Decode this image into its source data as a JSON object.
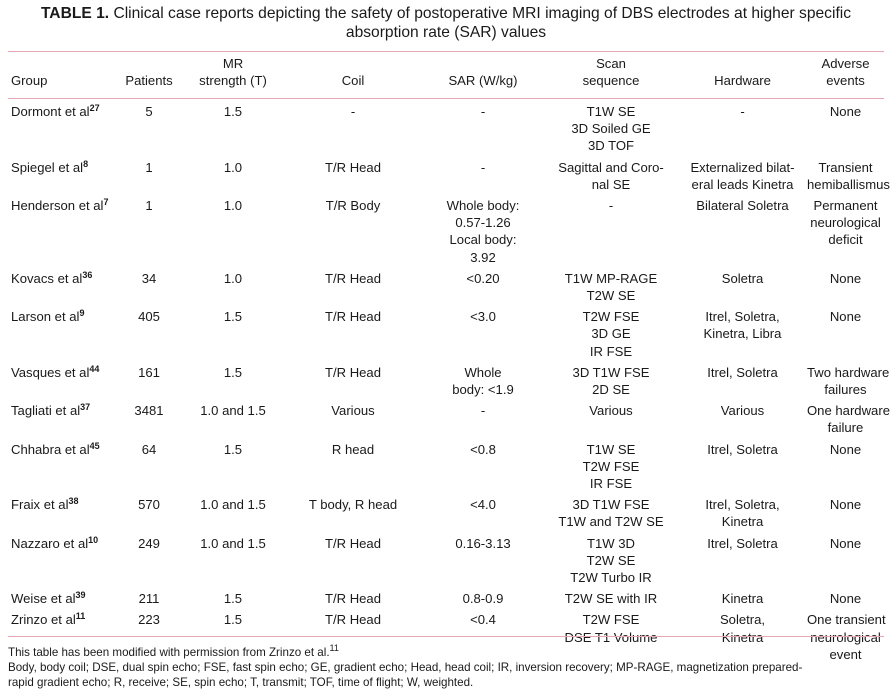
{
  "caption": {
    "label": "TABLE 1.",
    "line1": "Clinical case reports depicting the safety of postoperative MRI imaging of DBS electrodes at higher specific",
    "line2": "absorption rate (SAR) values"
  },
  "headers": {
    "group": [
      "Group"
    ],
    "patients": [
      "Patients"
    ],
    "mr": [
      "MR",
      "strength (T)"
    ],
    "coil": [
      "Coil"
    ],
    "sar": [
      "SAR (W/kg)"
    ],
    "scan": [
      "Scan",
      "sequence"
    ],
    "hardware": [
      "Hardware"
    ],
    "adverse": [
      "Adverse",
      "events"
    ]
  },
  "rows": [
    {
      "group": "Dormont et al",
      "ref": "27",
      "patients": "5",
      "mr": "1.5",
      "coil": [
        "-"
      ],
      "sar": [
        "-"
      ],
      "scan": [
        "T1W SE",
        "3D Soiled GE",
        "3D TOF"
      ],
      "hardware": [
        "-"
      ],
      "adverse": [
        "None"
      ]
    },
    {
      "group": "Spiegel et al",
      "ref": "8",
      "patients": "1",
      "mr": "1.0",
      "coil": [
        "T/R Head"
      ],
      "sar": [
        "-"
      ],
      "scan": [
        "Sagittal and Coro-",
        "nal SE"
      ],
      "hardware": [
        "Externalized bilat-",
        "eral leads Kinetra"
      ],
      "adverse": [
        "Transient",
        "hemiballismus"
      ]
    },
    {
      "group": "Henderson et al",
      "ref": "7",
      "patients": "1",
      "mr": "1.0",
      "coil": [
        "T/R Body"
      ],
      "sar": [
        "Whole body:",
        "0.57-1.26",
        "Local body:",
        "3.92"
      ],
      "scan": [
        "-"
      ],
      "hardware": [
        "Bilateral Soletra"
      ],
      "adverse": [
        "Permanent",
        "neurological",
        "deficit"
      ]
    },
    {
      "group": "Kovacs et al",
      "ref": "36",
      "patients": "34",
      "mr": "1.0",
      "coil": [
        "T/R Head"
      ],
      "sar": [
        "<0.20"
      ],
      "scan": [
        "T1W MP-RAGE",
        "T2W SE"
      ],
      "hardware": [
        "Soletra"
      ],
      "adverse": [
        "None"
      ]
    },
    {
      "group": "Larson et al",
      "ref": "9",
      "patients": "405",
      "mr": "1.5",
      "coil": [
        "T/R Head"
      ],
      "sar": [
        "<3.0"
      ],
      "scan": [
        "T2W FSE",
        "3D GE",
        "IR FSE"
      ],
      "hardware": [
        "Itrel, Soletra,",
        "Kinetra, Libra"
      ],
      "adverse": [
        "None"
      ]
    },
    {
      "group": "Vasques et al",
      "ref": "44",
      "patients": "161",
      "mr": "1.5",
      "coil": [
        "T/R Head"
      ],
      "sar": [
        "Whole",
        "body: <1.9"
      ],
      "scan": [
        "3D T1W FSE",
        "2D SE"
      ],
      "hardware": [
        "Itrel, Soletra"
      ],
      "adverse": [
        "Two hardware",
        "failures"
      ]
    },
    {
      "group": "Tagliati et al",
      "ref": "37",
      "patients": "3481",
      "mr": "1.0 and 1.5",
      "coil": [
        "Various"
      ],
      "sar": [
        "-"
      ],
      "scan": [
        "Various"
      ],
      "hardware": [
        "Various"
      ],
      "adverse": [
        "One hardware",
        "failure"
      ]
    },
    {
      "group": "Chhabra et al",
      "ref": "45",
      "patients": "64",
      "mr": "1.5",
      "coil": [
        "R head"
      ],
      "sar": [
        "<0.8"
      ],
      "scan": [
        "T1W SE",
        "T2W FSE",
        "IR FSE"
      ],
      "hardware": [
        "Itrel, Soletra"
      ],
      "adverse": [
        "None"
      ]
    },
    {
      "group": "Fraix et al",
      "ref": "38",
      "patients": "570",
      "mr": "1.0 and 1.5",
      "coil": [
        "T body, R head"
      ],
      "sar": [
        "<4.0"
      ],
      "scan": [
        "3D T1W FSE",
        "T1W and T2W SE"
      ],
      "hardware": [
        "Itrel, Soletra,",
        "Kinetra"
      ],
      "adverse": [
        "None"
      ]
    },
    {
      "group": "Nazzaro et al",
      "ref": "10",
      "patients": "249",
      "mr": "1.0 and 1.5",
      "coil": [
        "T/R Head"
      ],
      "sar": [
        "0.16-3.13"
      ],
      "scan": [
        "T1W 3D",
        "T2W SE",
        "T2W Turbo IR"
      ],
      "hardware": [
        "Itrel, Soletra"
      ],
      "adverse": [
        "None"
      ]
    },
    {
      "group": "Weise et al",
      "ref": "39",
      "patients": "211",
      "mr": "1.5",
      "coil": [
        "T/R Head"
      ],
      "sar": [
        "0.8-0.9"
      ],
      "scan": [
        "T2W SE with IR"
      ],
      "hardware": [
        "Kinetra"
      ],
      "adverse": [
        "None"
      ]
    },
    {
      "group": "Zrinzo et al",
      "ref": "11",
      "patients": "223",
      "mr": "1.5",
      "coil": [
        "T/R Head"
      ],
      "sar": [
        "<0.4"
      ],
      "scan": [
        "T2W FSE",
        "DSE T1 Volume"
      ],
      "hardware": [
        "Soletra,",
        "Kinetra"
      ],
      "adverse": [
        "One transient",
        "neurological",
        "event"
      ]
    }
  ],
  "footer": {
    "note": "This table has been modified with permission from Zrinzo et al.",
    "note_ref": "11",
    "abbrev_line1": "Body, body coil; DSE, dual spin echo; FSE, fast spin echo; GE, gradient echo; Head, head coil; IR, inversion recovery; MP-RAGE, magnetization prepared-",
    "abbrev_line2": "rapid gradient echo; R, receive; SE, spin echo; T, transmit; TOF, time of flight; W, weighted."
  }
}
